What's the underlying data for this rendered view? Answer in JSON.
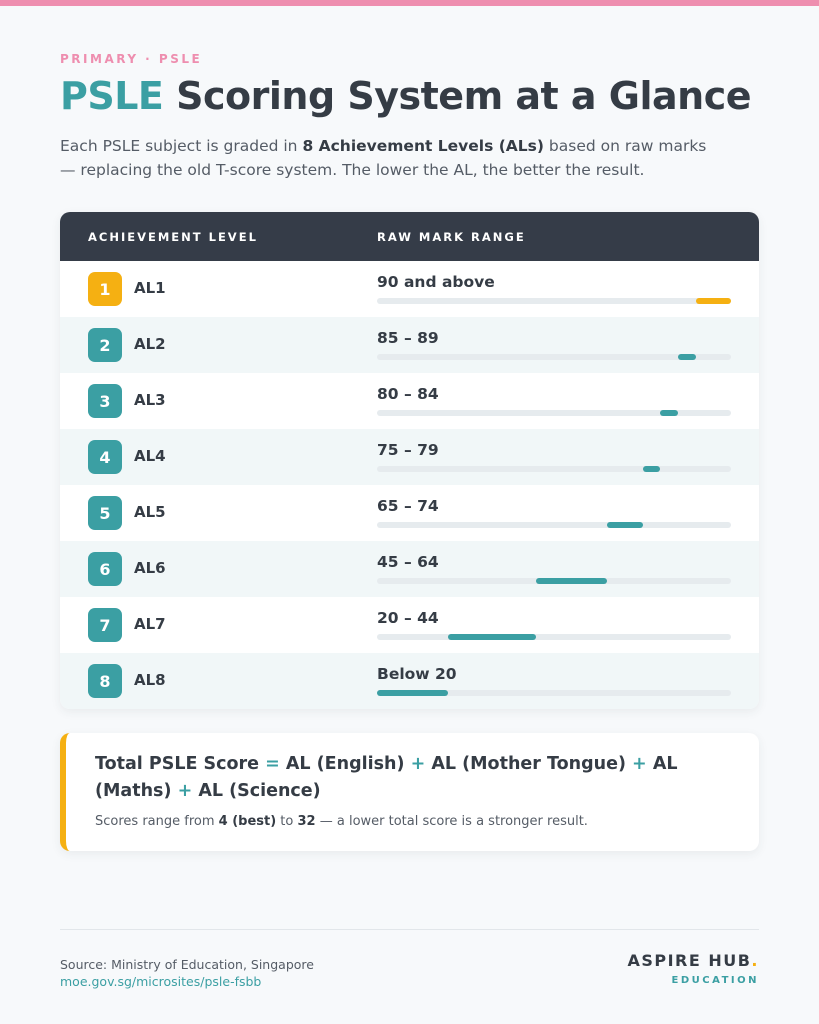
{
  "header": {
    "eyebrow": "PRIMARY · PSLE",
    "title_accent": "PSLE",
    "title_rest": " Scoring System at a Glance",
    "intro_pre": "Each PSLE subject is graded in ",
    "intro_bold": "8 Achievement Levels (ALs)",
    "intro_post": " based on raw marks — replacing the old T-score system. The lower the AL, the better the result."
  },
  "table": {
    "col_level": "ACHIEVEMENT LEVEL",
    "col_range": "RAW MARK RANGE",
    "rows": [
      {
        "num": "1",
        "label": "AL1",
        "range": "90 and above",
        "min": 90,
        "max": 100,
        "highlight": true
      },
      {
        "num": "2",
        "label": "AL2",
        "range": "85 – 89",
        "min": 85,
        "max": 89
      },
      {
        "num": "3",
        "label": "AL3",
        "range": "80 – 84",
        "min": 80,
        "max": 84
      },
      {
        "num": "4",
        "label": "AL4",
        "range": "75 – 79",
        "min": 75,
        "max": 79
      },
      {
        "num": "5",
        "label": "AL5",
        "range": "65 – 74",
        "min": 65,
        "max": 74
      },
      {
        "num": "6",
        "label": "AL6",
        "range": "45 – 64",
        "min": 45,
        "max": 64
      },
      {
        "num": "7",
        "label": "AL7",
        "range": "20 – 44",
        "min": 20,
        "max": 44
      },
      {
        "num": "8",
        "label": "AL8",
        "range": "Below 20",
        "min": 0,
        "max": 19
      }
    ]
  },
  "formula": {
    "term1": "Total PSLE Score",
    "eq": "=",
    "term2": "AL (English)",
    "plus": "+",
    "term3": "AL (Mother Tongue)",
    "term4": "AL (Maths)",
    "term5": "AL (Science)",
    "note_pre": "Scores range from ",
    "note_best": "4 (best)",
    "note_mid": " to ",
    "note_worst": "32",
    "note_post": " — a lower total score is a stronger result."
  },
  "footer": {
    "source": "Source: Ministry of Education, Singapore",
    "link": "moe.gov.sg/microsites/psle-fsbb",
    "brand": "ASPIRE HUB",
    "brand_dot": ".",
    "brand_sub": "EDUCATION"
  },
  "colors": {
    "teal": "#3b9fa3",
    "gold": "#f5b012",
    "pink": "#ee8eaf",
    "dark": "#353c48"
  }
}
